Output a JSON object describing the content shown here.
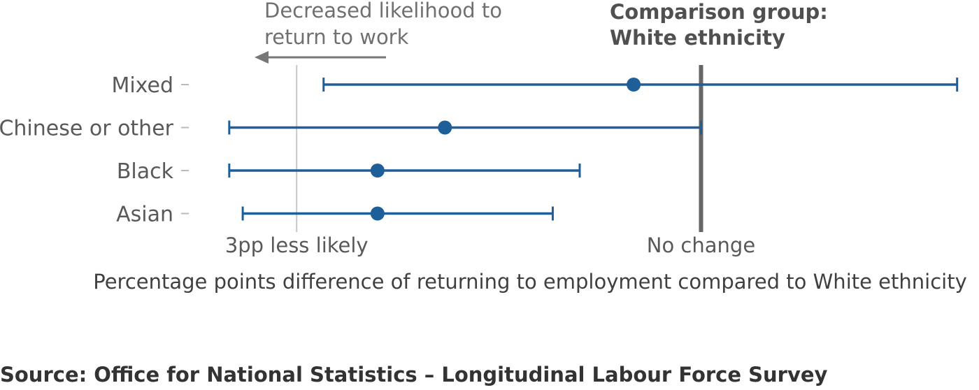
{
  "chart_data": {
    "type": "dot-whisker",
    "categories": [
      "Mixed",
      "Chinese or other",
      "Black",
      "Asian"
    ],
    "estimates": [
      -0.5,
      -1.9,
      -2.4,
      -2.4
    ],
    "lower": [
      -2.8,
      -3.5,
      -3.5,
      -3.4
    ],
    "upper": [
      1.9,
      0.0,
      -0.9,
      -1.1
    ],
    "xlim": [
      -3.8,
      2.0
    ],
    "x_ticks": [
      {
        "value": -3,
        "label": "3pp less likely"
      },
      {
        "value": 0,
        "label": "No change"
      }
    ],
    "xlabel": "Percentage points difference of returning to employment compared to White ethnicity",
    "annotation_arrow": [
      "Decreased likelihood to",
      "return to work"
    ],
    "annotation_reference": [
      "Comparison group:",
      "White ethnicity"
    ],
    "grid": false,
    "colors": {
      "series": "#1f5f99",
      "reference_line": "#666666",
      "gridline": "#c8c8c8"
    }
  },
  "source": "Source: Office for National Statistics – Longitudinal Labour Force Survey"
}
